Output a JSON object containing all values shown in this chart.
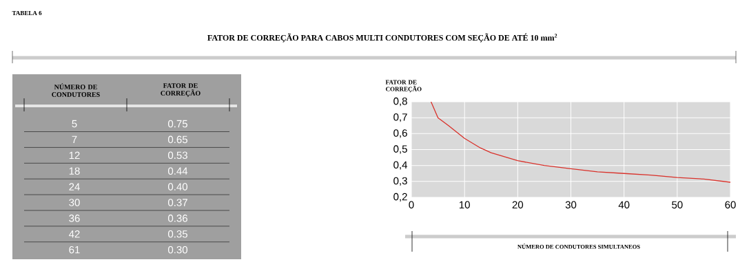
{
  "chart_data": [
    {
      "type": "other",
      "title": "FATOR DE CORREÇÃO PARA CABOS MULTI CONDUTORES COM SEÇÃO DE ATÉ 10 mm$^{2}$",
      "annotations": [
        "TABELA 6"
      ],
      "xlabel": "NÚMERO DE CONDUTORES",
      "ylabel": "FATOR DE CORREÇÃO",
      "categories": [
        "5",
        "7",
        "12",
        "18",
        "24",
        "30",
        "36",
        "42",
        "61"
      ],
      "value_labels": [
        "0.75",
        "0.65",
        "0.53",
        "0.44",
        "0.40",
        "0.37",
        "0.36",
        "0.35",
        "0.30"
      ]
    },
    {
      "type": "line",
      "xlabel": "NÚMERO DE CONDUTORES SIMULTANEOS",
      "ylabel": "FATOR DE CORREÇÃO",
      "x": [
        3.7,
        5,
        7,
        10,
        13,
        15,
        20,
        25,
        30,
        35,
        40,
        45,
        50,
        55,
        60
      ],
      "values": [
        0.8,
        0.7,
        0.65,
        0.57,
        0.51,
        0.48,
        0.43,
        0.4,
        0.38,
        0.36,
        0.35,
        0.34,
        0.325,
        0.315,
        0.295
      ],
      "color": "#d9312a",
      "xlim": [
        0,
        60
      ],
      "ylim": [
        0.2,
        0.8
      ],
      "xticks": [
        0,
        10,
        20,
        30,
        40,
        50,
        60
      ],
      "yticks": [
        {
          "value": 0.2,
          "label": "0,2"
        },
        {
          "value": 0.3,
          "label": "0,3"
        },
        {
          "value": 0.4,
          "label": "0,4"
        },
        {
          "value": 0.5,
          "label": "0,5"
        },
        {
          "value": 0.6,
          "label": "0,6"
        },
        {
          "value": 0.7,
          "label": "0,7"
        },
        {
          "value": 0.8,
          "label": "0,8"
        }
      ],
      "grid": true
    }
  ]
}
